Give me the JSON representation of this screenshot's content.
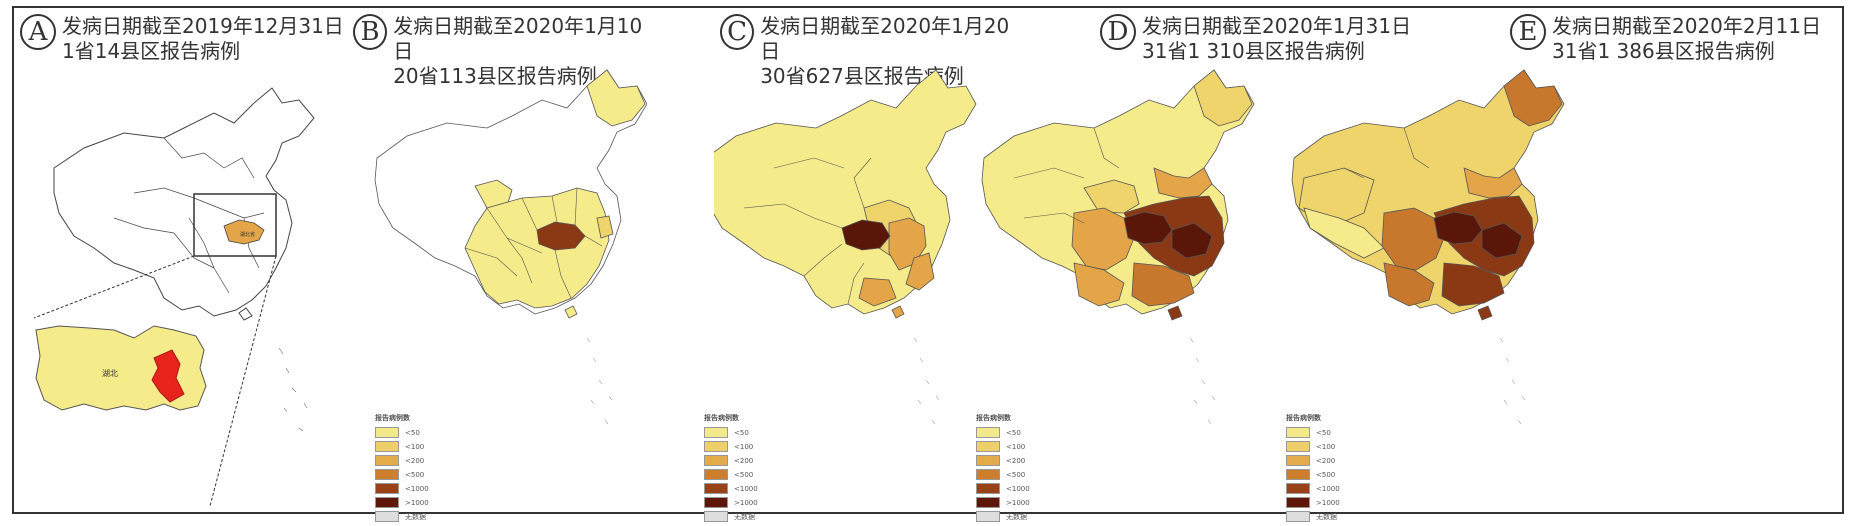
{
  "panels": [
    {
      "letter": "A",
      "line1": "发病日期截至2019年12月31日",
      "line2": "1省14县区报告病例"
    },
    {
      "letter": "B",
      "line1": "发病日期截至2020年1月10日",
      "line2": "20省113县区报告病例"
    },
    {
      "letter": "C",
      "line1": "发病日期截至2020年1月20日",
      "line2": "30省627县区报告病例"
    },
    {
      "letter": "D",
      "line1": "发病日期截至2020年1月31日",
      "line2": "31省1 310县区报告病例"
    },
    {
      "letter": "E",
      "line1": "发病日期截至2020年2月11日",
      "line2": "31省1 386县区报告病例"
    }
  ],
  "inset_label": "湖北",
  "province_label_a": "湖北省",
  "legend": {
    "title": "报告病例数",
    "items": [
      "<50",
      "<100",
      "<200",
      "<500",
      "<1000",
      ">1000",
      "无数据"
    ],
    "colors": [
      "#f3e98a",
      "#efcf6a",
      "#e4ab4a",
      "#cd7f2e",
      "#9a4217",
      "#5e1708",
      "#dddddd"
    ]
  },
  "colors": {
    "light_yellow": "#f5eb8a",
    "yellow": "#eed46b",
    "orange": "#e3a548",
    "dark_orange": "#c7782d",
    "brown": "#8a3914",
    "dark_brown": "#5a1608",
    "hubei_red": "#e8231c"
  }
}
